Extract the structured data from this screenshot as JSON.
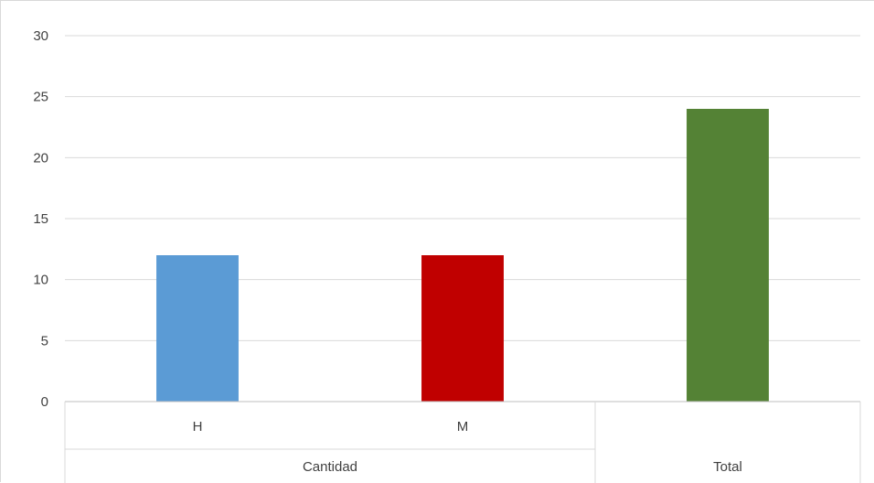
{
  "chart_data": {
    "type": "bar",
    "title": "",
    "xlabel": "",
    "ylabel": "",
    "ylim": [
      0,
      30
    ],
    "yticks": [
      0,
      5,
      10,
      15,
      20,
      25,
      30
    ],
    "grid": true,
    "legend": "none",
    "categories": [
      "H",
      "M",
      "Total"
    ],
    "category_groups": [
      "Cantidad",
      "Cantidad",
      "Total"
    ],
    "group_labels": [
      "Cantidad",
      "Total"
    ],
    "values": [
      12,
      12,
      24
    ],
    "bar_colors": [
      "#5b9bd5",
      "#c00000",
      "#548235"
    ]
  }
}
